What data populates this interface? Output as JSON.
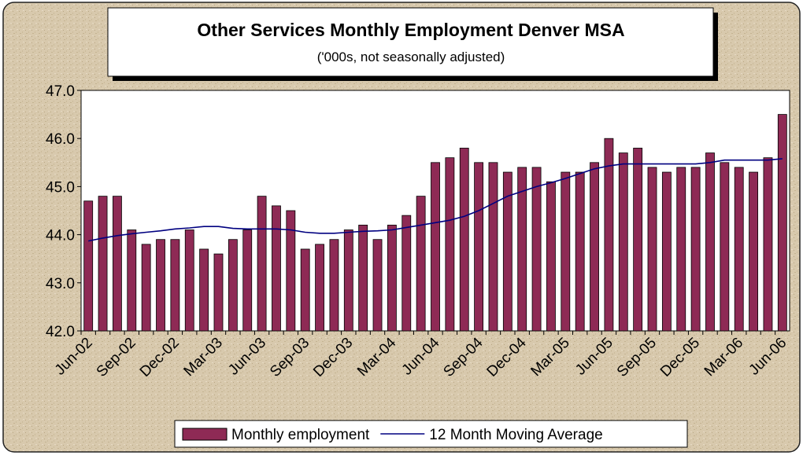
{
  "chart_data": {
    "type": "bar",
    "title": "Other Services Monthly Employment Denver MSA",
    "subtitle": "('000s, not seasonally adjusted)",
    "categories": [
      "Jun-02",
      null,
      null,
      "Sep-02",
      null,
      null,
      "Dec-02",
      null,
      null,
      "Mar-03",
      null,
      null,
      "Jun-03",
      null,
      null,
      "Sep-03",
      null,
      null,
      "Dec-03",
      null,
      null,
      "Mar-04",
      null,
      null,
      "Jun-04",
      null,
      null,
      "Sep-04",
      null,
      null,
      "Dec-04",
      null,
      null,
      "Mar-05",
      null,
      null,
      "Jun-05",
      null,
      null,
      "Sep-05",
      null,
      null,
      "Dec-05",
      null,
      null,
      "Mar-06",
      null,
      null,
      "Jun-06"
    ],
    "series": [
      {
        "name": "Monthly employment",
        "type": "bar",
        "color": "#8e2a55",
        "values": [
          44.7,
          44.8,
          44.8,
          44.1,
          43.8,
          43.9,
          43.9,
          44.1,
          43.7,
          43.6,
          43.9,
          44.1,
          44.8,
          44.6,
          44.5,
          43.7,
          43.8,
          43.9,
          44.1,
          44.2,
          43.9,
          44.2,
          44.4,
          44.8,
          45.5,
          45.6,
          45.8,
          45.5,
          45.5,
          45.3,
          45.4,
          45.4,
          45.1,
          45.3,
          45.3,
          45.5,
          46.0,
          45.7,
          45.8,
          45.4,
          45.3,
          45.4,
          45.4,
          45.7,
          45.5,
          45.4,
          45.3,
          45.6,
          46.5
        ]
      },
      {
        "name": "12 Month Moving Average",
        "type": "line",
        "color": "#000080",
        "values": [
          43.87,
          43.93,
          43.98,
          44.02,
          44.05,
          44.08,
          44.12,
          44.14,
          44.17,
          44.17,
          44.13,
          44.12,
          44.12,
          44.12,
          44.1,
          44.05,
          44.03,
          44.03,
          44.05,
          44.07,
          44.08,
          44.1,
          44.15,
          44.2,
          44.25,
          44.3,
          44.38,
          44.5,
          44.65,
          44.8,
          44.9,
          45.0,
          45.08,
          45.17,
          45.27,
          45.37,
          45.43,
          45.47,
          45.47,
          45.47,
          45.47,
          45.47,
          45.47,
          45.5,
          45.55,
          45.55,
          45.55,
          45.55,
          45.58
        ]
      }
    ],
    "ylim": [
      42,
      47
    ],
    "yticks": [
      {
        "value": 42,
        "label": "42.0"
      },
      {
        "value": 43,
        "label": "43.0"
      },
      {
        "value": 44,
        "label": "44.0"
      },
      {
        "value": 45,
        "label": "45.0"
      },
      {
        "value": 46,
        "label": "46.0"
      },
      {
        "value": 47,
        "label": "47.0"
      }
    ],
    "grid": false,
    "legend": "bottom"
  }
}
